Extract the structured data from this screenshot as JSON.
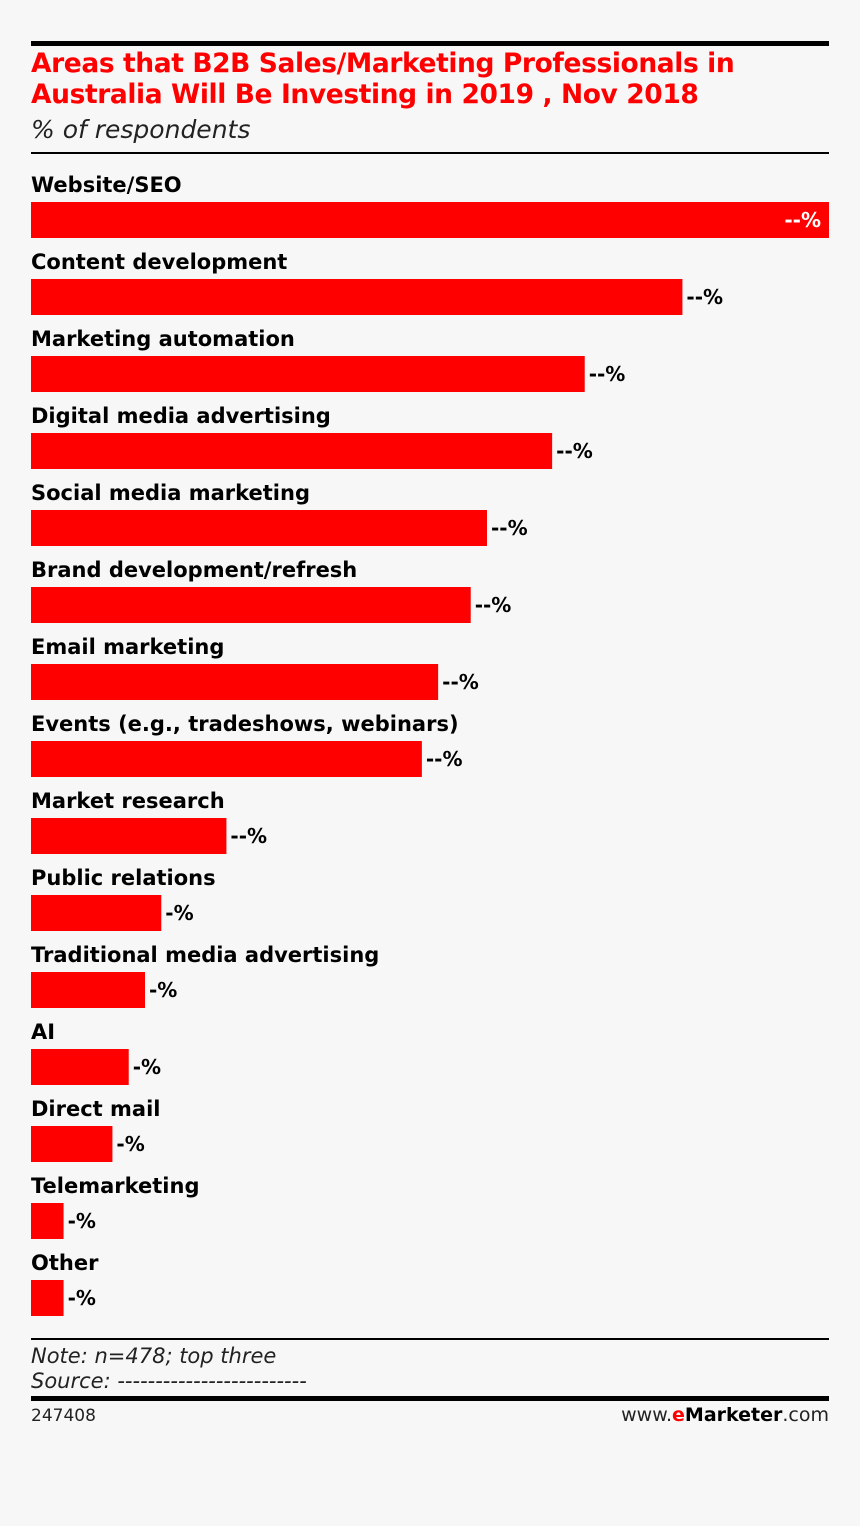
{
  "header": {
    "title_line1": "Areas that B2B Sales/Marketing Professionals in",
    "title_line2": "Australia Will Be Investing in 2019 , Nov 2018",
    "subtitle": "% of respondents"
  },
  "chart_data": {
    "type": "bar",
    "orientation": "horizontal",
    "categories": [
      "Website/SEO",
      "Content development",
      "Marketing automation",
      "Digital media advertising",
      "Social media marketing",
      "Brand development/refresh",
      "Email marketing",
      "Events (e.g., tradeshows, webinars)",
      "Market research",
      "Public relations",
      "Traditional media advertising",
      "AI",
      "Direct mail",
      "Telemarketing",
      "Other"
    ],
    "values": [
      49,
      40,
      34,
      32,
      28,
      27,
      25,
      24,
      12,
      8,
      7,
      6,
      5,
      2,
      2
    ],
    "value_labels": [
      "--%",
      "--%",
      "--%",
      "--%",
      "--%",
      "--%",
      "--%",
      "--%",
      "--%",
      "-%",
      "-%",
      "-%",
      "-%",
      "-%",
      "-%"
    ],
    "bar_color": "#ff0000",
    "xlim": [
      0,
      49
    ],
    "grid": false,
    "legend": "none"
  },
  "footer": {
    "note": "Note: n=478; top three",
    "source": "Source: -------------------------",
    "chart_id": "247408",
    "brand_prefix": "www.",
    "brand_e": "e",
    "brand_name": "Marketer",
    "brand_suffix": ".com"
  }
}
